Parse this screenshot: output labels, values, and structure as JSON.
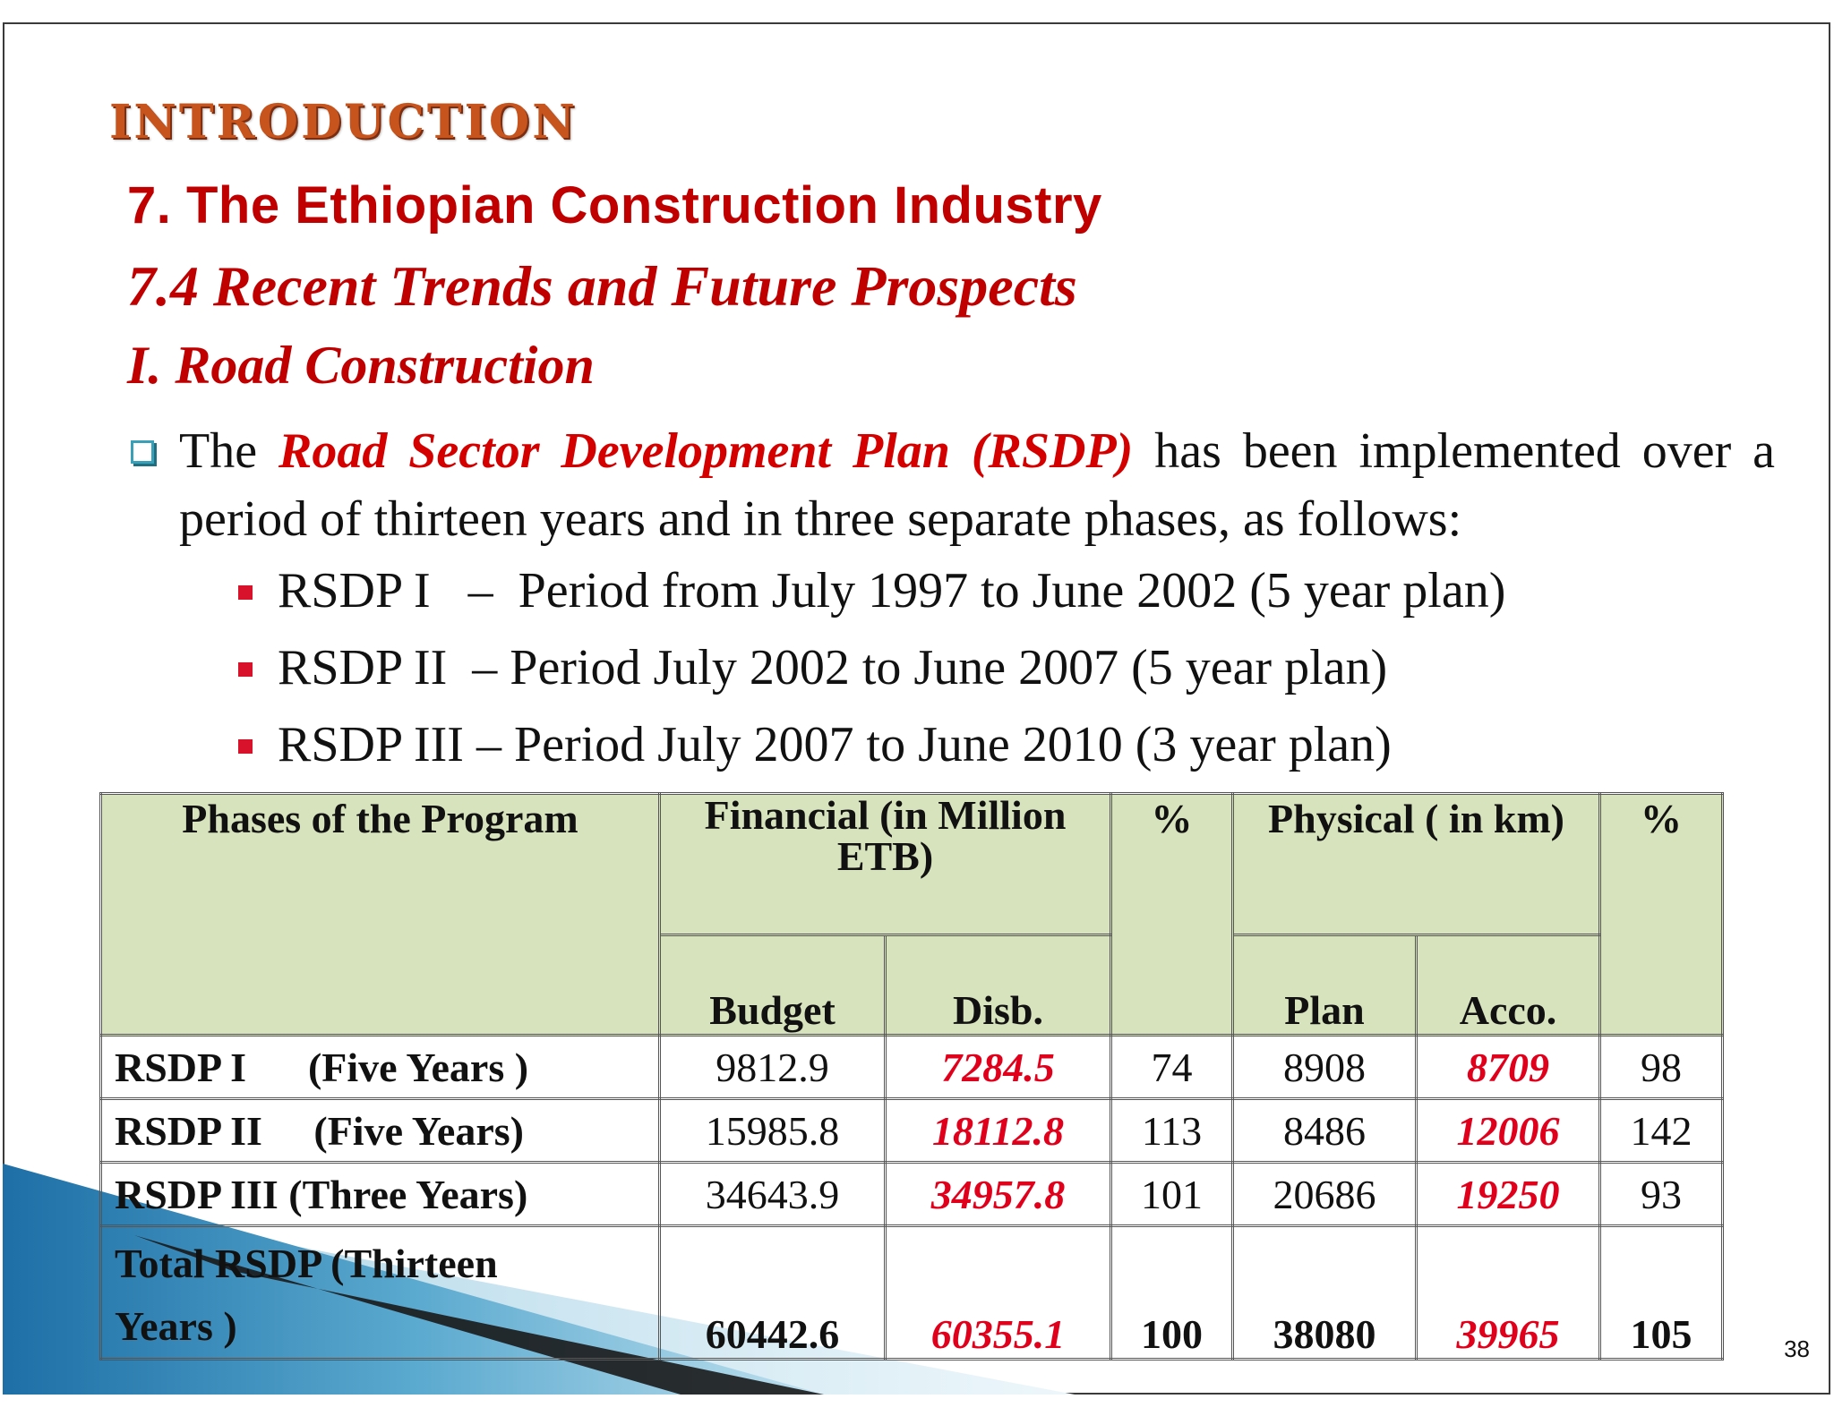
{
  "slide": {
    "kicker": "INTRODUCTION",
    "heading": "7. The Ethiopian Construction Industry",
    "subheading": "7.4 Recent Trends and Future Prospects",
    "section": "I. Road Construction",
    "paragraph": {
      "lead": "The ",
      "emphasis": "Road Sector Development Plan (RSDP)",
      "rest": " has been implemented over a period of thirteen years and in three separate phases, as follows:"
    },
    "phases_list": [
      "RSDP I   –  Period from July 1997 to June 2002 (5 year plan)",
      "RSDP II  – Period July 2002 to June 2007 (5 year plan)",
      "RSDP III – Period July 2007 to June 2010 (3 year plan)"
    ],
    "page_number": "38"
  },
  "table": {
    "headers": {
      "phases": "Phases of the Program",
      "financial": "Financial (in Million ETB)",
      "financial_pct": "%",
      "physical": "Physical ( in km)",
      "physical_pct": "%",
      "budget": "Budget",
      "disb": "Disb.",
      "plan": "Plan",
      "acco": "Acco."
    },
    "rows": [
      {
        "phase": "RSDP I      (Five Years )",
        "budget": "9812.9",
        "disb": "7284.5",
        "fin_pct": "74",
        "plan": "8908",
        "acco": "8709",
        "phys_pct": "98"
      },
      {
        "phase": "RSDP II     (Five Years)",
        "budget": "15985.8",
        "disb": "18112.8",
        "fin_pct": "113",
        "plan": "8486",
        "acco": "12006",
        "phys_pct": "142"
      },
      {
        "phase": "RSDP III (Three Years)",
        "budget": "34643.9",
        "disb": "34957.8",
        "fin_pct": "101",
        "plan": "20686",
        "acco": "19250",
        "phys_pct": "93"
      }
    ],
    "total": {
      "phase_line1": "Total RSDP (Thirteen",
      "phase_line2": "Years )",
      "budget": "60442.6",
      "disb": "60355.1",
      "fin_pct": "100",
      "plan": "38080",
      "acco": "39965",
      "phys_pct": "105"
    }
  },
  "colors": {
    "heading_red": "#c00000",
    "value_red": "#e0001b",
    "kicker_orange": "#c7541d",
    "header_green": "#d6e3bc"
  }
}
